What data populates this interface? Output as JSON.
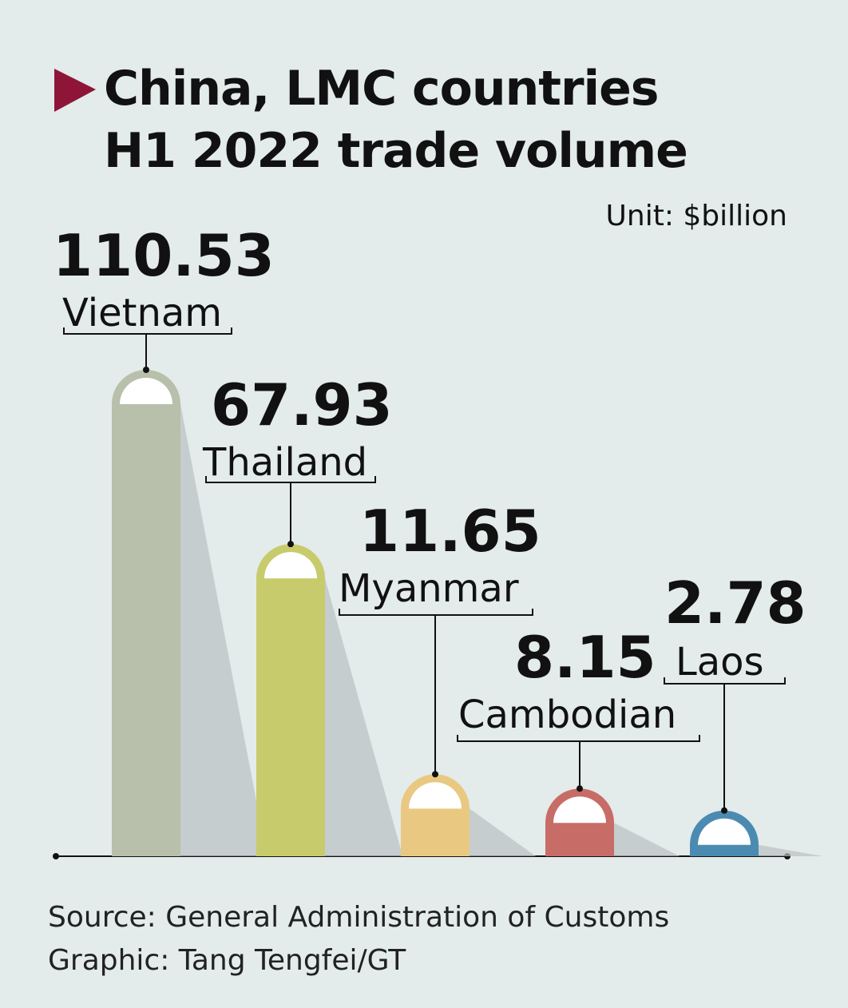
{
  "chart_data": {
    "type": "bar",
    "title": "China, LMC countries\nH1 2022 trade volume",
    "unit": "Unit: $billion",
    "categories": [
      "Vietnam",
      "Thailand",
      "Myanmar",
      "Cambodian",
      "Laos"
    ],
    "values": [
      110.53,
      67.93,
      11.65,
      8.15,
      2.78
    ],
    "colors": [
      "#b8bfab",
      "#c8cb6b",
      "#e9c981",
      "#c76c66",
      "#4b8bb1"
    ],
    "source": "Source: General Administration of Customs",
    "credit": "Graphic: Tang Tengfei/GT"
  }
}
